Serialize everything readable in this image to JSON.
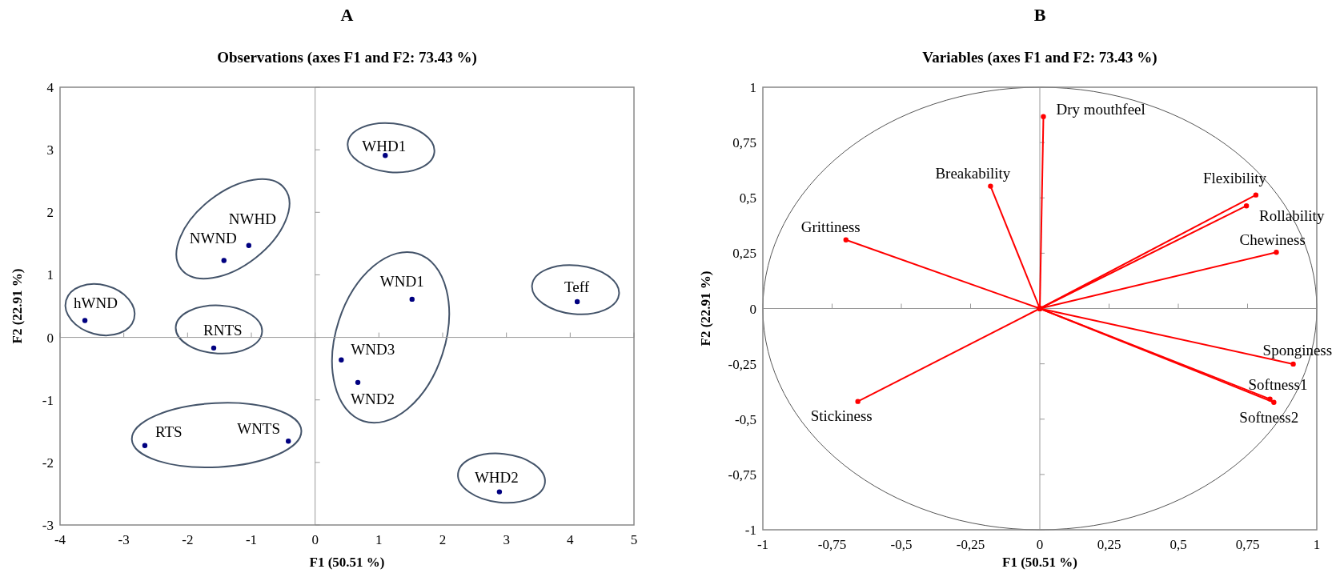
{
  "chart_data": [
    {
      "type": "scatter",
      "title": "A",
      "subtitle": "Observations (axes F1 and F2: 73.43 %)",
      "xlabel": "F1 (50.51 %)",
      "ylabel": "F2 (22.91 %)",
      "xlim": [
        -4,
        5
      ],
      "ylim": [
        -3,
        4
      ],
      "xticks": [
        -4,
        -3,
        -2,
        -1,
        0,
        1,
        2,
        3,
        4,
        5
      ],
      "yticks": [
        -3,
        -2,
        -1,
        0,
        1,
        2,
        3,
        4
      ],
      "marker": "circle",
      "color": "#000080",
      "x": [
        -3.61,
        -1.43,
        -1.04,
        -1.59,
        1.1,
        1.52,
        0.41,
        0.67,
        -2.67,
        -0.42,
        4.11,
        2.89
      ],
      "values": [
        0.27,
        1.23,
        1.47,
        -0.17,
        2.91,
        0.61,
        -0.36,
        -0.72,
        -1.73,
        -1.66,
        0.57,
        -2.47
      ],
      "annotations": [
        {
          "text": "hWND",
          "x": -3.61,
          "y": 0.27
        },
        {
          "text": "NWND",
          "x": -1.43,
          "y": 1.23
        },
        {
          "text": "NWHD",
          "x": -1.04,
          "y": 1.47
        },
        {
          "text": "RNTS",
          "x": -1.59,
          "y": -0.17
        },
        {
          "text": "WHD1",
          "x": 1.1,
          "y": 2.91
        },
        {
          "text": "WND1",
          "x": 1.52,
          "y": 0.61
        },
        {
          "text": "WND3",
          "x": 0.41,
          "y": -0.36
        },
        {
          "text": "WND2",
          "x": 0.67,
          "y": -0.72
        },
        {
          "text": "RTS",
          "x": -2.67,
          "y": -1.73
        },
        {
          "text": "WNTS",
          "x": -0.42,
          "y": -1.66
        },
        {
          "text": "Teff",
          "x": 4.11,
          "y": 0.57
        },
        {
          "text": "WHD2",
          "x": 2.89,
          "y": -2.47
        }
      ]
    },
    {
      "type": "line",
      "title": "B",
      "subtitle": "Variables (axes F1 and F2: 73.43 %)",
      "xlabel": "F1 (50.51 %)",
      "ylabel": "F2 (22.91 %)",
      "xlim": [
        -1,
        1
      ],
      "ylim": [
        -1,
        1
      ],
      "xticks": [
        -1,
        {
          "value": -0.75,
          "label": "-0,75"
        },
        {
          "value": -0.5,
          "label": "-0,5"
        },
        {
          "value": -0.25,
          "label": "-0,25"
        },
        0,
        {
          "value": 0.25,
          "label": "0,25"
        },
        {
          "value": 0.5,
          "label": "0,5"
        },
        {
          "value": 0.75,
          "label": "0,75"
        },
        1
      ],
      "yticks": [
        -1,
        {
          "value": -0.75,
          "label": "-0,75"
        },
        {
          "value": -0.5,
          "label": "-0,5"
        },
        {
          "value": -0.25,
          "label": "-0,25"
        },
        0,
        {
          "value": 0.25,
          "label": "0,25"
        },
        {
          "value": 0.5,
          "label": "0,5"
        },
        {
          "value": 0.75,
          "label": "0,75"
        },
        1
      ],
      "marker": "circle",
      "line_style": "solid",
      "series": [
        {
          "name": "Dry mouthfeel",
          "color": "#ff0000",
          "x": [
            0,
            0.013
          ],
          "values": [
            0,
            0.867
          ]
        },
        {
          "name": "Breakability",
          "color": "#ff0000",
          "x": [
            0,
            -0.178
          ],
          "values": [
            0,
            0.553
          ]
        },
        {
          "name": "Grittiness",
          "color": "#ff0000",
          "x": [
            0,
            -0.7
          ],
          "values": [
            0,
            0.31
          ]
        },
        {
          "name": "Stickiness",
          "color": "#ff0000",
          "x": [
            0,
            -0.657
          ],
          "values": [
            0,
            -0.42
          ]
        },
        {
          "name": "Flexibility",
          "color": "#ff0000",
          "x": [
            0,
            0.78
          ],
          "values": [
            0,
            0.513
          ]
        },
        {
          "name": "Rollability",
          "color": "#ff0000",
          "x": [
            0,
            0.746
          ],
          "values": [
            0,
            0.464
          ]
        },
        {
          "name": "Chewiness",
          "color": "#ff0000",
          "x": [
            0,
            0.854
          ],
          "values": [
            0,
            0.254
          ]
        },
        {
          "name": "Sponginess",
          "color": "#ff0000",
          "x": [
            0,
            0.915
          ],
          "values": [
            0,
            -0.251
          ]
        },
        {
          "name": "Softness1",
          "color": "#ff0000",
          "x": [
            0,
            0.831
          ],
          "values": [
            0,
            -0.409
          ]
        },
        {
          "name": "Softness2",
          "color": "#ff0000",
          "x": [
            0,
            0.845
          ],
          "values": [
            0,
            -0.424
          ]
        }
      ]
    }
  ]
}
